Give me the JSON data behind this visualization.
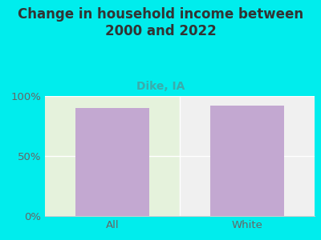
{
  "title": "Change in household income between\n2000 and 2022",
  "subtitle": "Dike, IA",
  "categories": [
    "All",
    "White"
  ],
  "values": [
    90,
    92
  ],
  "bar_color": "#C3A8D1",
  "background_color": "#00EDED",
  "plot_bg_left": "#E5F2DC",
  "plot_bg_right": "#F0F0F0",
  "title_color": "#333333",
  "subtitle_color": "#3AACAC",
  "tick_color": "#666666",
  "axis_line_color": "#CCCCCC",
  "ylim": [
    0,
    100
  ],
  "yticks": [
    0,
    50,
    100
  ],
  "ytick_labels": [
    "0%",
    "50%",
    "100%"
  ],
  "title_fontsize": 12,
  "subtitle_fontsize": 10,
  "tick_fontsize": 9.5
}
